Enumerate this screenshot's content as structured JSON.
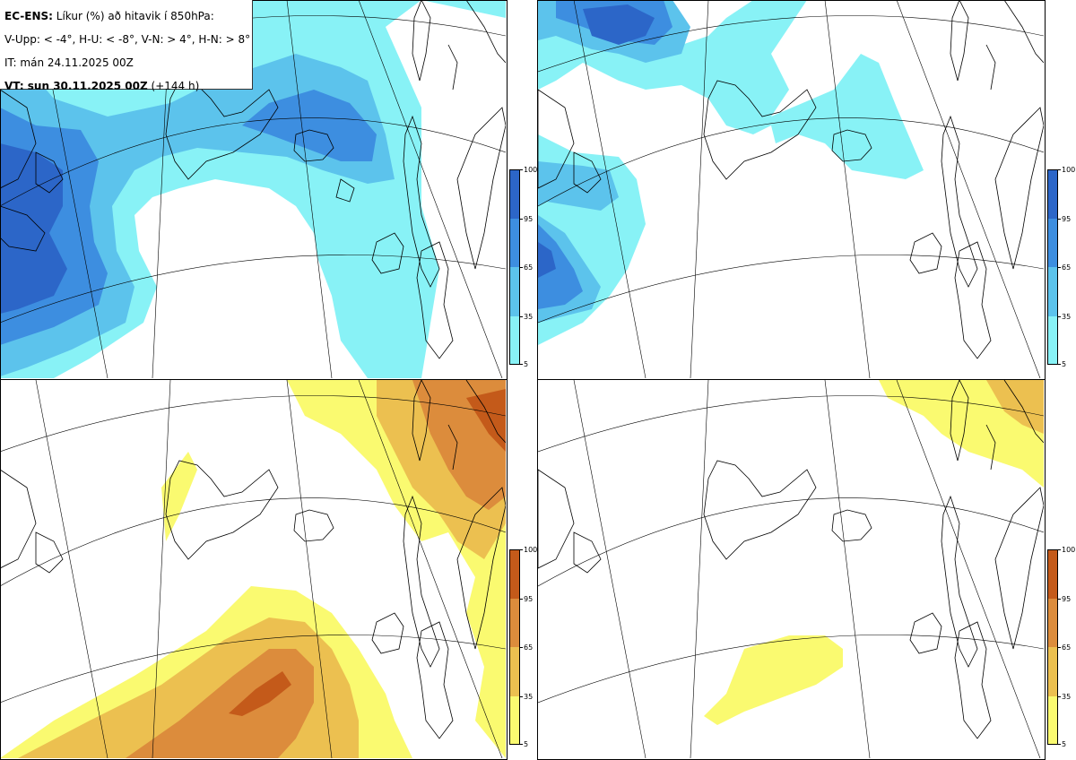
{
  "title": {
    "product": "EC-ENS:",
    "description": "Líkur (%) að hitavik í 850hPa:",
    "thresholds": "V-Upp: < -4°, H-U: < -8°, V-N: > 4°, H-N: > 8°",
    "initial_time": "IT: mán 24.11.2025 00Z",
    "valid_label": "VT: sun 30.11.2025 00Z",
    "lead_time": "(+144 h)"
  },
  "panels": [
    {
      "id": "V-Upp",
      "description": "probability anomaly < -4°",
      "scale": "blue"
    },
    {
      "id": "H-U",
      "description": "probability anomaly < -8°",
      "scale": "blue"
    },
    {
      "id": "V-N",
      "description": "probability anomaly > 4°",
      "scale": "yellow-brown"
    },
    {
      "id": "H-N",
      "description": "probability anomaly > 8°",
      "scale": "yellow-brown"
    }
  ],
  "colorbar": {
    "ticks": [
      "100",
      "95",
      "65",
      "35",
      "5"
    ],
    "cold_colors": [
      "#2c66c8",
      "#3d8ee0",
      "#5cc3ec",
      "#88f2f6"
    ],
    "warm_colors": [
      "#c45a1a",
      "#dc8c3c",
      "#ecc050",
      "#fafa70"
    ]
  }
}
